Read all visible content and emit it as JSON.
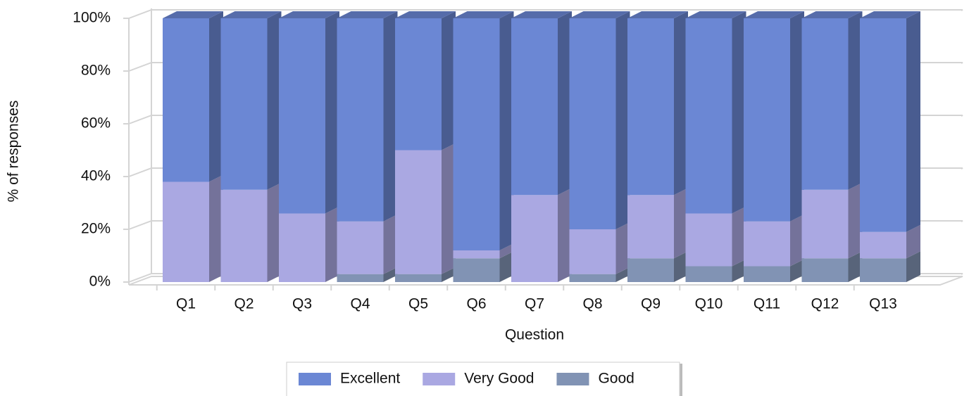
{
  "chart_data": {
    "type": "bar",
    "stacked": true,
    "x_label": "Question",
    "y_label": "% of responses",
    "categories": [
      "Q1",
      "Q2",
      "Q3",
      "Q4",
      "Q5",
      "Q6",
      "Q7",
      "Q8",
      "Q9",
      "Q10",
      "Q11",
      "Q12",
      "Q13"
    ],
    "series": [
      {
        "name": "Excellent",
        "color": "#6b87d4",
        "values": [
          62,
          65,
          74,
          77,
          50,
          88,
          67,
          80,
          67,
          74,
          77,
          65,
          81
        ]
      },
      {
        "name": "Very Good",
        "color": "#aaa8e2",
        "values": [
          38,
          35,
          26,
          20,
          47,
          3,
          33,
          17,
          24,
          20,
          17,
          26,
          10
        ]
      },
      {
        "name": "Good",
        "color": "#8193b4",
        "values": [
          0,
          0,
          0,
          3,
          3,
          9,
          0,
          3,
          9,
          6,
          6,
          9,
          9
        ]
      }
    ],
    "ylim": [
      0,
      100
    ],
    "yticks": [
      {
        "value": 0,
        "label": "0%"
      },
      {
        "value": 20,
        "label": "20%"
      },
      {
        "value": 40,
        "label": "40%"
      },
      {
        "value": 60,
        "label": "60%"
      },
      {
        "value": 80,
        "label": "80%"
      },
      {
        "value": 100,
        "label": "100%"
      }
    ],
    "grid": true
  }
}
